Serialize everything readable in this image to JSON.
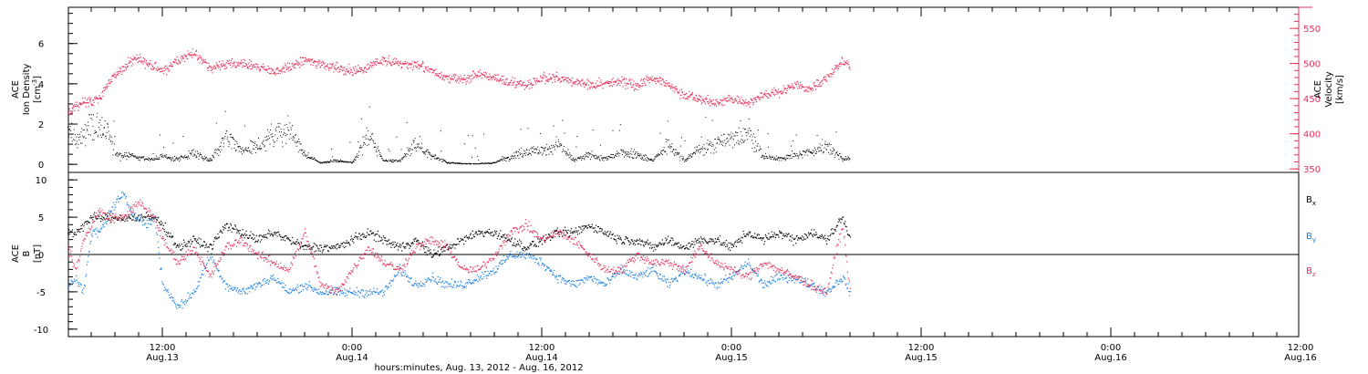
{
  "chart_data": [
    {
      "type": "scatter",
      "panel": "ion-density-velocity",
      "ylabel_left": [
        "ACE",
        "Ion Density",
        "[cm",
        "-3",
        "]"
      ],
      "ylabel_right": [
        "ACE",
        "Velocity",
        "[km/s]"
      ],
      "ylim_left": [
        -0.4,
        7.8
      ],
      "yticks_left": [
        0,
        2,
        4,
        6
      ],
      "ylim_right": [
        345,
        580
      ],
      "yticks_right": [
        350,
        400,
        450,
        500,
        550
      ],
      "colors": {
        "density": "#000000",
        "velocity": "#e8305a"
      },
      "series": [
        {
          "name": "",
          "axis": "left",
          "x_hours": [
            0,
            1,
            2,
            3,
            4,
            5,
            6,
            7,
            8,
            9,
            10,
            11,
            12,
            14,
            16,
            18,
            20,
            22,
            24,
            26,
            28,
            30,
            32,
            34,
            36,
            38,
            40,
            42,
            44,
            46,
            48,
            50,
            52,
            54,
            56,
            58,
            60,
            62,
            64,
            66,
            68,
            70,
            72,
            74,
            76,
            78,
            80,
            82,
            84,
            86,
            88,
            90,
            92,
            94,
            96,
            98,
            99
          ],
          "values": [
            1.8,
            1.2,
            1.5,
            2.0,
            1.8,
            1.5,
            0.6,
            0.4,
            0.5,
            0.3,
            0.3,
            0.3,
            0.4,
            0.3,
            0.6,
            0.2,
            1.3,
            0.7,
            0.9,
            1.5,
            1.7,
            0.5,
            0.1,
            0.2,
            0.1,
            1.5,
            0.2,
            0.2,
            1.0,
            0.5,
            0.1,
            0.05,
            0.05,
            0.1,
            0.4,
            0.7,
            0.7,
            1.0,
            0.2,
            0.5,
            0.3,
            0.6,
            0.5,
            0.2,
            1.0,
            0.2,
            0.8,
            1.0,
            1.3,
            1.7,
            0.4,
            0.3,
            0.5,
            0.6,
            1.0,
            0.3,
            0.3
          ]
        },
        {
          "name": "",
          "axis": "right",
          "x_hours": [
            0,
            1,
            2,
            3,
            4,
            5,
            6,
            7,
            8,
            9,
            10,
            11,
            12,
            14,
            16,
            18,
            20,
            22,
            24,
            26,
            28,
            30,
            32,
            34,
            36,
            38,
            40,
            42,
            44,
            46,
            48,
            50,
            52,
            54,
            56,
            58,
            60,
            62,
            64,
            66,
            68,
            70,
            72,
            74,
            76,
            78,
            80,
            82,
            84,
            86,
            88,
            90,
            92,
            94,
            96,
            98,
            99
          ],
          "values": [
            430,
            440,
            445,
            448,
            452,
            470,
            485,
            495,
            505,
            510,
            500,
            495,
            490,
            505,
            515,
            495,
            500,
            500,
            495,
            490,
            495,
            505,
            500,
            495,
            490,
            495,
            505,
            500,
            500,
            490,
            480,
            478,
            485,
            480,
            475,
            470,
            480,
            480,
            475,
            470,
            472,
            475,
            470,
            480,
            470,
            455,
            450,
            445,
            450,
            445,
            455,
            460,
            470,
            465,
            480,
            505,
            495
          ]
        }
      ]
    },
    {
      "type": "scatter",
      "panel": "magnetic-field",
      "ylabel": [
        "ACE",
        "B",
        "[nT]"
      ],
      "ylim": [
        -11,
        11
      ],
      "yticks": [
        -10,
        -5,
        0,
        5,
        10
      ],
      "legend": [
        "B",
        "B",
        "B"
      ],
      "legend_subscripts": [
        "x",
        "y",
        "z"
      ],
      "colors": {
        "Bx": "#000000",
        "By": "#1a7fe0",
        "Bz": "#e8305a"
      },
      "series": [
        {
          "name": "B_x",
          "x_hours": [
            0,
            1,
            2,
            3,
            4,
            5,
            6,
            7,
            8,
            9,
            10,
            11,
            12,
            14,
            16,
            18,
            20,
            22,
            24,
            26,
            28,
            30,
            32,
            34,
            36,
            38,
            40,
            42,
            44,
            46,
            48,
            50,
            52,
            54,
            56,
            58,
            60,
            62,
            64,
            66,
            68,
            70,
            72,
            74,
            76,
            78,
            80,
            82,
            84,
            86,
            88,
            90,
            92,
            94,
            96,
            98,
            99
          ],
          "values": [
            3,
            3,
            4,
            5,
            5,
            5,
            5,
            5,
            5,
            5,
            5,
            5,
            4,
            1,
            2,
            1,
            4,
            3,
            2,
            3,
            2,
            1,
            1,
            1,
            2,
            3,
            2,
            1,
            2,
            0,
            1,
            2,
            3,
            3,
            2,
            1,
            2,
            3,
            3,
            4,
            3,
            2,
            2,
            1,
            2,
            1,
            2,
            2,
            1,
            3,
            2,
            3,
            2,
            3,
            2,
            5,
            2
          ]
        },
        {
          "name": "B_y",
          "x_hours": [
            0,
            1,
            2,
            3,
            4,
            5,
            6,
            7,
            8,
            9,
            10,
            11,
            12,
            14,
            16,
            18,
            20,
            22,
            24,
            26,
            28,
            30,
            32,
            34,
            36,
            38,
            40,
            42,
            44,
            46,
            48,
            50,
            52,
            54,
            56,
            58,
            60,
            62,
            64,
            66,
            68,
            70,
            72,
            74,
            76,
            78,
            80,
            82,
            84,
            86,
            88,
            90,
            92,
            94,
            96,
            98,
            99
          ],
          "values": [
            -4,
            -3,
            -5,
            3,
            3,
            5,
            7,
            8,
            6,
            5,
            4,
            5,
            -4,
            -7,
            -5,
            0,
            -4,
            -5,
            -4,
            -3,
            -5,
            -4,
            -5,
            -5,
            -5,
            -5,
            -5,
            -2,
            -4,
            -3,
            -4,
            -4,
            -3,
            -2,
            0,
            0,
            -1,
            -3,
            -4,
            -3,
            -4,
            -2,
            -3,
            -2,
            -4,
            -2,
            -3,
            -4,
            -3,
            -1,
            -4,
            -3,
            -3,
            -4,
            -5,
            -3,
            -5
          ]
        },
        {
          "name": "B_z",
          "x_hours": [
            0,
            1,
            2,
            3,
            4,
            5,
            6,
            7,
            8,
            9,
            10,
            11,
            12,
            14,
            16,
            18,
            20,
            22,
            24,
            26,
            28,
            30,
            32,
            34,
            36,
            38,
            40,
            42,
            44,
            46,
            48,
            50,
            52,
            54,
            56,
            58,
            60,
            62,
            64,
            66,
            68,
            70,
            72,
            74,
            76,
            78,
            80,
            82,
            84,
            86,
            88,
            90,
            92,
            94,
            96,
            98,
            99
          ],
          "values": [
            1,
            -2,
            2,
            4,
            6,
            5,
            5,
            5,
            6,
            7,
            6,
            5,
            2,
            -1,
            1,
            -3,
            1,
            2,
            0,
            -1,
            -2,
            3,
            -4,
            -5,
            -2,
            1,
            -1,
            -2,
            1,
            2,
            1,
            -2,
            -2,
            0,
            3,
            4,
            2,
            3,
            2,
            0,
            -2,
            -2,
            0,
            -1,
            -1,
            -2,
            1,
            -1,
            -2,
            -3,
            -1,
            -2,
            -3,
            -4,
            -5,
            4,
            -5
          ]
        }
      ]
    }
  ],
  "x_axis": {
    "ticks": [
      {
        "hour": 12,
        "time": "12:00",
        "date": "Aug.13"
      },
      {
        "hour": 36,
        "time": "0:00",
        "date": "Aug.14"
      },
      {
        "hour": 60,
        "time": "12:00",
        "date": "Aug.14"
      },
      {
        "hour": 84,
        "time": "0:00",
        "date": "Aug.15"
      },
      {
        "hour": 108,
        "time": "12:00",
        "date": "Aug.15"
      },
      {
        "hour": 132,
        "time": "0:00",
        "date": "Aug.16"
      },
      {
        "hour": 156,
        "time": "12:00",
        "date": "Aug.16"
      }
    ],
    "label": "hours:minutes, Aug. 13, 2012 - Aug. 16, 2012",
    "range_hours": [
      0,
      156
    ]
  }
}
